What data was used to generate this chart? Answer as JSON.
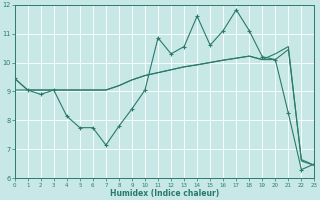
{
  "xlabel": "Humidex (Indice chaleur)",
  "bg_color": "#c8e8e8",
  "line_color": "#2a7a6a",
  "grid_color": "#ffffff",
  "xlim": [
    0,
    23
  ],
  "ylim": [
    6,
    12
  ],
  "xticks": [
    0,
    1,
    2,
    3,
    4,
    5,
    6,
    7,
    8,
    9,
    10,
    11,
    12,
    13,
    14,
    15,
    16,
    17,
    18,
    19,
    20,
    21,
    22,
    23
  ],
  "yticks": [
    6,
    7,
    8,
    9,
    10,
    11,
    12
  ],
  "line_raw_x": [
    0,
    1,
    2,
    3,
    4,
    5,
    6,
    7,
    8,
    9,
    10,
    11,
    12,
    13,
    14,
    15,
    16,
    17,
    18,
    19,
    20,
    21,
    22,
    23
  ],
  "line_raw_y": [
    9.45,
    9.05,
    8.9,
    9.05,
    8.15,
    7.75,
    7.75,
    7.15,
    7.8,
    8.4,
    9.05,
    10.85,
    10.3,
    10.55,
    11.6,
    10.6,
    11.1,
    11.82,
    11.1,
    10.2,
    10.1,
    8.25,
    6.3,
    6.5
  ],
  "line_trend_upper_x": [
    0,
    1,
    2,
    3,
    4,
    5,
    6,
    7,
    8,
    9,
    10,
    11,
    12,
    13,
    14,
    15,
    16,
    17,
    18,
    19,
    20,
    21,
    22,
    23
  ],
  "line_trend_upper_y": [
    9.05,
    9.05,
    9.05,
    9.05,
    9.05,
    9.05,
    9.05,
    9.05,
    9.2,
    9.4,
    9.55,
    9.65,
    9.75,
    9.85,
    9.92,
    10.0,
    10.08,
    10.15,
    10.22,
    10.1,
    10.1,
    10.45,
    6.65,
    6.45
  ],
  "line_trend_lower_x": [
    0,
    1,
    2,
    3,
    4,
    5,
    6,
    7,
    8,
    9,
    10,
    11,
    12,
    13,
    14,
    15,
    16,
    17,
    18,
    19,
    20,
    21,
    22,
    23
  ],
  "line_trend_lower_y": [
    9.45,
    9.05,
    9.05,
    9.05,
    9.05,
    9.05,
    9.05,
    9.05,
    9.2,
    9.4,
    9.55,
    9.65,
    9.75,
    9.85,
    9.92,
    10.0,
    10.08,
    10.15,
    10.22,
    10.1,
    10.3,
    10.55,
    6.6,
    6.45
  ]
}
